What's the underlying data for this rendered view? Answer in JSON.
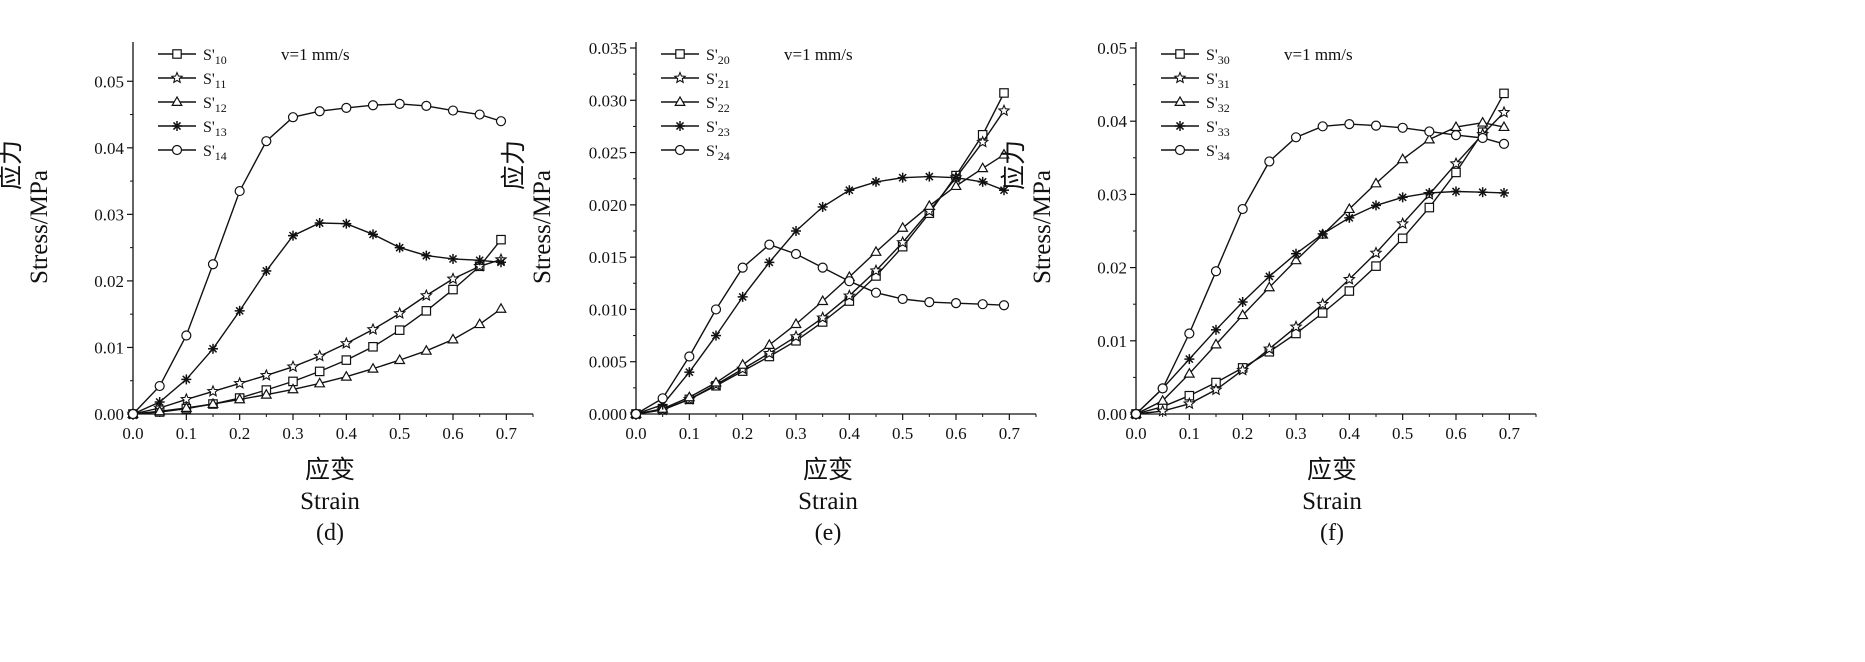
{
  "chart_data": [
    {
      "type": "line",
      "panel_label": "(d)",
      "annotation": "v=1 mm/s",
      "xlabel_cn": "应变",
      "xlabel_en": "Strain",
      "ylabel_cn": "应力",
      "ylabel_en": "Stress/MPa",
      "xlim": [
        0,
        0.75
      ],
      "ylim": [
        0,
        0.055
      ],
      "xticks": [
        "0.0",
        "0.1",
        "0.2",
        "0.3",
        "0.4",
        "0.5",
        "0.6",
        "0.7"
      ],
      "yticks": [
        "0.00",
        "0.01",
        "0.02",
        "0.03",
        "0.04",
        "0.05"
      ],
      "legend_position": "top-left",
      "series": [
        {
          "name": "S'10",
          "marker": "square",
          "x": [
            0,
            0.05,
            0.1,
            0.15,
            0.2,
            0.25,
            0.3,
            0.35,
            0.4,
            0.45,
            0.5,
            0.55,
            0.6,
            0.65,
            0.69
          ],
          "y": [
            0,
            0.0003,
            0.0008,
            0.0015,
            0.0024,
            0.0036,
            0.0049,
            0.0064,
            0.0081,
            0.0101,
            0.0126,
            0.0155,
            0.0187,
            0.0222,
            0.0262
          ]
        },
        {
          "name": "S'11",
          "marker": "star",
          "x": [
            0,
            0.05,
            0.1,
            0.15,
            0.2,
            0.25,
            0.3,
            0.35,
            0.4,
            0.45,
            0.5,
            0.55,
            0.6,
            0.65,
            0.69
          ],
          "y": [
            0,
            0.0009,
            0.0022,
            0.0034,
            0.0046,
            0.0058,
            0.0071,
            0.0087,
            0.0106,
            0.0127,
            0.0151,
            0.0178,
            0.0203,
            0.0222,
            0.0232
          ]
        },
        {
          "name": "S'12",
          "marker": "triangle",
          "x": [
            0,
            0.05,
            0.1,
            0.15,
            0.2,
            0.25,
            0.3,
            0.35,
            0.4,
            0.45,
            0.5,
            0.55,
            0.6,
            0.65,
            0.69
          ],
          "y": [
            0,
            0.0004,
            0.0009,
            0.0015,
            0.0022,
            0.0029,
            0.0037,
            0.0046,
            0.0056,
            0.0068,
            0.0081,
            0.0095,
            0.0112,
            0.0135,
            0.0158
          ]
        },
        {
          "name": "S'13",
          "marker": "asterisk",
          "x": [
            0,
            0.05,
            0.1,
            0.15,
            0.2,
            0.25,
            0.3,
            0.35,
            0.4,
            0.45,
            0.5,
            0.55,
            0.6,
            0.65,
            0.69
          ],
          "y": [
            0,
            0.0018,
            0.0052,
            0.0098,
            0.0155,
            0.0215,
            0.0268,
            0.0287,
            0.0286,
            0.027,
            0.025,
            0.0238,
            0.0233,
            0.0231,
            0.0228
          ]
        },
        {
          "name": "S'14",
          "marker": "circle",
          "x": [
            0,
            0.05,
            0.1,
            0.15,
            0.2,
            0.25,
            0.3,
            0.35,
            0.4,
            0.45,
            0.5,
            0.55,
            0.6,
            0.65,
            0.69
          ],
          "y": [
            0,
            0.0042,
            0.0118,
            0.0225,
            0.0335,
            0.041,
            0.0446,
            0.0455,
            0.046,
            0.0464,
            0.0466,
            0.0463,
            0.0456,
            0.045,
            0.044
          ]
        }
      ]
    },
    {
      "type": "line",
      "panel_label": "(e)",
      "annotation": "v=1 mm/s",
      "xlabel_cn": "应变",
      "xlabel_en": "Strain",
      "ylabel_cn": "应力",
      "ylabel_en": "Stress/MPa",
      "xlim": [
        0,
        0.75
      ],
      "ylim": [
        0,
        0.035
      ],
      "xticks": [
        "0.0",
        "0.1",
        "0.2",
        "0.3",
        "0.4",
        "0.5",
        "0.6",
        "0.7"
      ],
      "yticks": [
        "0.000",
        "0.005",
        "0.010",
        "0.015",
        "0.020",
        "0.025",
        "0.030",
        "0.035"
      ],
      "legend_position": "top-left",
      "series": [
        {
          "name": "S'20",
          "marker": "square",
          "x": [
            0,
            0.05,
            0.1,
            0.15,
            0.2,
            0.25,
            0.3,
            0.35,
            0.4,
            0.45,
            0.5,
            0.55,
            0.6,
            0.65,
            0.69
          ],
          "y": [
            0,
            0.0004,
            0.0014,
            0.0027,
            0.0041,
            0.0055,
            0.007,
            0.0088,
            0.0108,
            0.0132,
            0.016,
            0.0192,
            0.0228,
            0.0267,
            0.0307
          ]
        },
        {
          "name": "S'21",
          "marker": "star",
          "x": [
            0,
            0.05,
            0.1,
            0.15,
            0.2,
            0.25,
            0.3,
            0.35,
            0.4,
            0.45,
            0.5,
            0.55,
            0.6,
            0.65,
            0.69
          ],
          "y": [
            0,
            0.0004,
            0.0014,
            0.0028,
            0.0043,
            0.0058,
            0.0074,
            0.0092,
            0.0113,
            0.0137,
            0.0164,
            0.0194,
            0.0226,
            0.026,
            0.029
          ]
        },
        {
          "name": "S'22",
          "marker": "triangle",
          "x": [
            0,
            0.05,
            0.1,
            0.15,
            0.2,
            0.25,
            0.3,
            0.35,
            0.4,
            0.45,
            0.5,
            0.55,
            0.6,
            0.65,
            0.69
          ],
          "y": [
            0,
            0.0005,
            0.0016,
            0.003,
            0.0047,
            0.0066,
            0.0086,
            0.0108,
            0.0131,
            0.0155,
            0.0178,
            0.0199,
            0.0218,
            0.0235,
            0.0248
          ]
        },
        {
          "name": "S'23",
          "marker": "asterisk",
          "x": [
            0,
            0.05,
            0.1,
            0.15,
            0.2,
            0.25,
            0.3,
            0.35,
            0.4,
            0.45,
            0.5,
            0.55,
            0.6,
            0.65,
            0.69
          ],
          "y": [
            0,
            0.0009,
            0.004,
            0.0075,
            0.0112,
            0.0145,
            0.0175,
            0.0198,
            0.0214,
            0.0222,
            0.0226,
            0.0227,
            0.0226,
            0.0222,
            0.0214
          ]
        },
        {
          "name": "S'24",
          "marker": "circle",
          "x": [
            0,
            0.05,
            0.1,
            0.15,
            0.2,
            0.25,
            0.3,
            0.35,
            0.4,
            0.45,
            0.5,
            0.55,
            0.6,
            0.65,
            0.69
          ],
          "y": [
            0,
            0.0015,
            0.0055,
            0.01,
            0.014,
            0.0162,
            0.0153,
            0.014,
            0.0127,
            0.0116,
            0.011,
            0.0107,
            0.0106,
            0.0105,
            0.0104
          ]
        }
      ]
    },
    {
      "type": "line",
      "panel_label": "(f)",
      "annotation": "v=1 mm/s",
      "xlabel_cn": "应变",
      "xlabel_en": "Strain",
      "ylabel_cn": "应力",
      "ylabel_en": "Stress/MPa",
      "xlim": [
        0,
        0.75
      ],
      "ylim": [
        0,
        0.05
      ],
      "xticks": [
        "0.0",
        "0.1",
        "0.2",
        "0.3",
        "0.4",
        "0.5",
        "0.6",
        "0.7"
      ],
      "yticks": [
        "0.00",
        "0.01",
        "0.02",
        "0.03",
        "0.04",
        "0.05"
      ],
      "legend_position": "top-left",
      "series": [
        {
          "name": "S'30",
          "marker": "square",
          "x": [
            0,
            0.05,
            0.1,
            0.15,
            0.2,
            0.25,
            0.3,
            0.35,
            0.4,
            0.45,
            0.5,
            0.55,
            0.6,
            0.65,
            0.69
          ],
          "y": [
            0,
            0.001,
            0.0025,
            0.0043,
            0.0063,
            0.0085,
            0.011,
            0.0138,
            0.0168,
            0.0202,
            0.024,
            0.0282,
            0.033,
            0.0385,
            0.0438
          ]
        },
        {
          "name": "S'31",
          "marker": "star",
          "x": [
            0,
            0.05,
            0.1,
            0.15,
            0.2,
            0.25,
            0.3,
            0.35,
            0.4,
            0.45,
            0.5,
            0.55,
            0.6,
            0.65,
            0.69
          ],
          "y": [
            0,
            0.0004,
            0.0014,
            0.0033,
            0.006,
            0.0089,
            0.0119,
            0.015,
            0.0184,
            0.022,
            0.026,
            0.03,
            0.0342,
            0.0382,
            0.0412
          ]
        },
        {
          "name": "S'32",
          "marker": "triangle",
          "x": [
            0,
            0.05,
            0.1,
            0.15,
            0.2,
            0.25,
            0.3,
            0.35,
            0.4,
            0.45,
            0.5,
            0.55,
            0.6,
            0.65,
            0.69
          ],
          "y": [
            0,
            0.0018,
            0.0055,
            0.0095,
            0.0135,
            0.0173,
            0.021,
            0.0245,
            0.028,
            0.0315,
            0.0348,
            0.0375,
            0.0392,
            0.0398,
            0.0392
          ]
        },
        {
          "name": "S'33",
          "marker": "asterisk",
          "x": [
            0,
            0.05,
            0.1,
            0.15,
            0.2,
            0.25,
            0.3,
            0.35,
            0.4,
            0.45,
            0.5,
            0.55,
            0.6,
            0.65,
            0.69
          ],
          "y": [
            0,
            0.0035,
            0.0075,
            0.0115,
            0.0153,
            0.0188,
            0.0219,
            0.0246,
            0.0268,
            0.0285,
            0.0296,
            0.0302,
            0.0304,
            0.0303,
            0.0302
          ]
        },
        {
          "name": "S'34",
          "marker": "circle",
          "x": [
            0,
            0.05,
            0.1,
            0.15,
            0.2,
            0.25,
            0.3,
            0.35,
            0.4,
            0.45,
            0.5,
            0.55,
            0.6,
            0.65,
            0.69
          ],
          "y": [
            0,
            0.0035,
            0.011,
            0.0195,
            0.028,
            0.0345,
            0.0378,
            0.0393,
            0.0396,
            0.0394,
            0.0391,
            0.0386,
            0.0381,
            0.0377,
            0.0369
          ]
        }
      ]
    }
  ]
}
